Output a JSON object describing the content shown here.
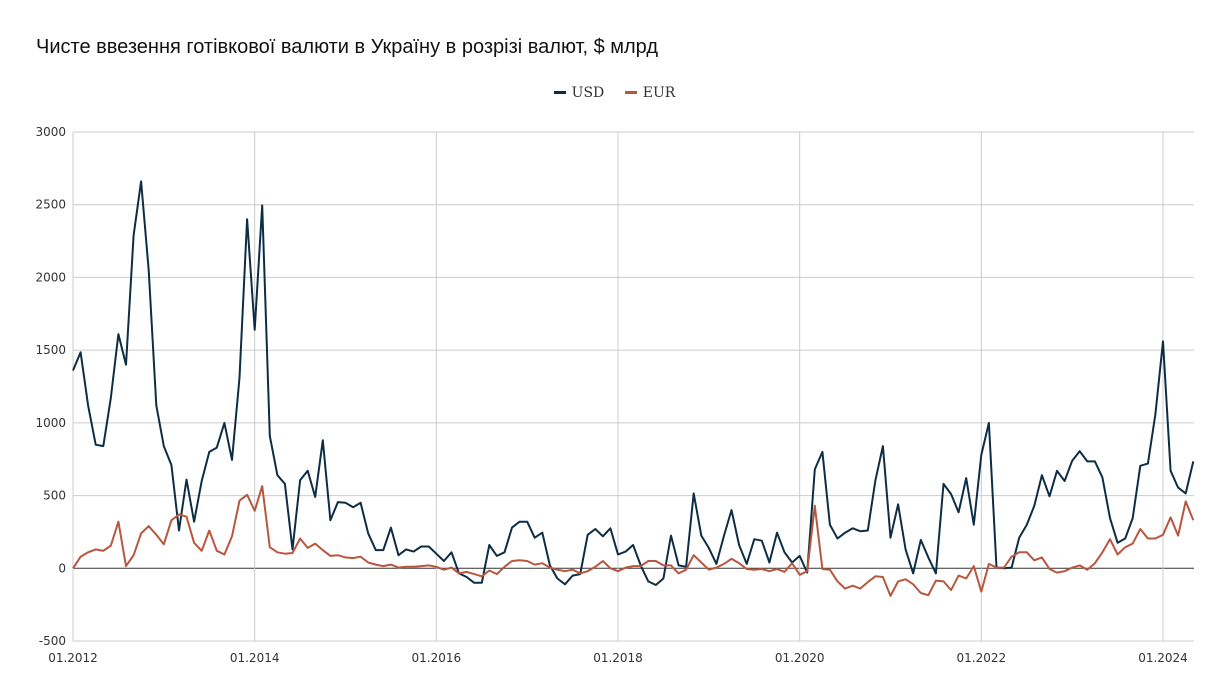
{
  "chart_data": {
    "type": "line",
    "title": "Чисте ввезення готівкової валюти в Україну в розрізі валют, $ млрд",
    "xlabel": "",
    "ylabel": "",
    "x_start": "01.2012",
    "x_end": "05.2024",
    "frequency": "monthly",
    "ylim": [
      -500,
      3000
    ],
    "yticks": [
      -500,
      0,
      500,
      1000,
      1500,
      2000,
      2500,
      3000
    ],
    "xticks": [
      {
        "label": "01.2012",
        "index": 0
      },
      {
        "label": "01.2014",
        "index": 24
      },
      {
        "label": "01.2016",
        "index": 48
      },
      {
        "label": "01.2018",
        "index": 72
      },
      {
        "label": "01.2020",
        "index": 96
      },
      {
        "label": "01.2022",
        "index": 120
      },
      {
        "label": "01.2024",
        "index": 144
      }
    ],
    "grid": true,
    "legend_position": "top-center",
    "series": [
      {
        "name": "USD",
        "color": "#0d2d45",
        "values": [
          1360,
          1485,
          1120,
          850,
          840,
          1170,
          1610,
          1400,
          2290,
          2660,
          2050,
          1120,
          840,
          710,
          260,
          610,
          320,
          600,
          800,
          830,
          1000,
          745,
          1310,
          2400,
          1640,
          2495,
          910,
          640,
          580,
          130,
          605,
          670,
          490,
          880,
          330,
          455,
          450,
          420,
          450,
          240,
          125,
          125,
          280,
          90,
          130,
          115,
          150,
          150,
          100,
          50,
          110,
          -35,
          -60,
          -100,
          -100,
          160,
          85,
          110,
          280,
          320,
          320,
          210,
          245,
          20,
          -70,
          -110,
          -50,
          -40,
          230,
          270,
          220,
          275,
          95,
          115,
          160,
          20,
          -90,
          -115,
          -70,
          225,
          20,
          10,
          515,
          225,
          140,
          30,
          225,
          400,
          160,
          30,
          200,
          190,
          40,
          245,
          110,
          40,
          85,
          -30,
          680,
          800,
          300,
          205,
          245,
          275,
          255,
          260,
          605,
          840,
          210,
          440,
          130,
          -35,
          195,
          75,
          -35,
          580,
          510,
          385,
          620,
          300,
          780,
          1000,
          5,
          0,
          5,
          210,
          300,
          430,
          640,
          495,
          670,
          600,
          740,
          805,
          735,
          735,
          625,
          345,
          175,
          205,
          345,
          705,
          720,
          1060,
          1560,
          670,
          555,
          515,
          735
        ]
      },
      {
        "name": "EUR",
        "color": "#b9563f",
        "values": [
          0,
          80,
          110,
          130,
          120,
          155,
          320,
          15,
          90,
          240,
          290,
          230,
          165,
          330,
          370,
          355,
          175,
          120,
          260,
          120,
          95,
          220,
          465,
          505,
          395,
          565,
          145,
          110,
          100,
          105,
          205,
          140,
          170,
          125,
          85,
          90,
          75,
          70,
          80,
          40,
          25,
          15,
          25,
          5,
          10,
          10,
          15,
          20,
          10,
          -10,
          5,
          -35,
          -25,
          -40,
          -55,
          -15,
          -40,
          10,
          50,
          55,
          50,
          25,
          35,
          5,
          -10,
          -20,
          -10,
          -35,
          -20,
          10,
          50,
          0,
          -20,
          5,
          15,
          15,
          50,
          50,
          20,
          20,
          -35,
          -10,
          90,
          40,
          -10,
          5,
          30,
          65,
          35,
          -5,
          -10,
          -5,
          -20,
          -5,
          -25,
          35,
          -45,
          -20,
          430,
          -5,
          -10,
          -90,
          -140,
          -120,
          -140,
          -95,
          -55,
          -60,
          -190,
          -90,
          -75,
          -110,
          -170,
          -185,
          -85,
          -90,
          -150,
          -50,
          -70,
          15,
          -160,
          30,
          5,
          5,
          80,
          110,
          110,
          55,
          75,
          -5,
          -30,
          -20,
          5,
          20,
          -10,
          35,
          110,
          200,
          95,
          145,
          170,
          270,
          205,
          205,
          230,
          350,
          225,
          460,
          330
        ]
      }
    ]
  }
}
